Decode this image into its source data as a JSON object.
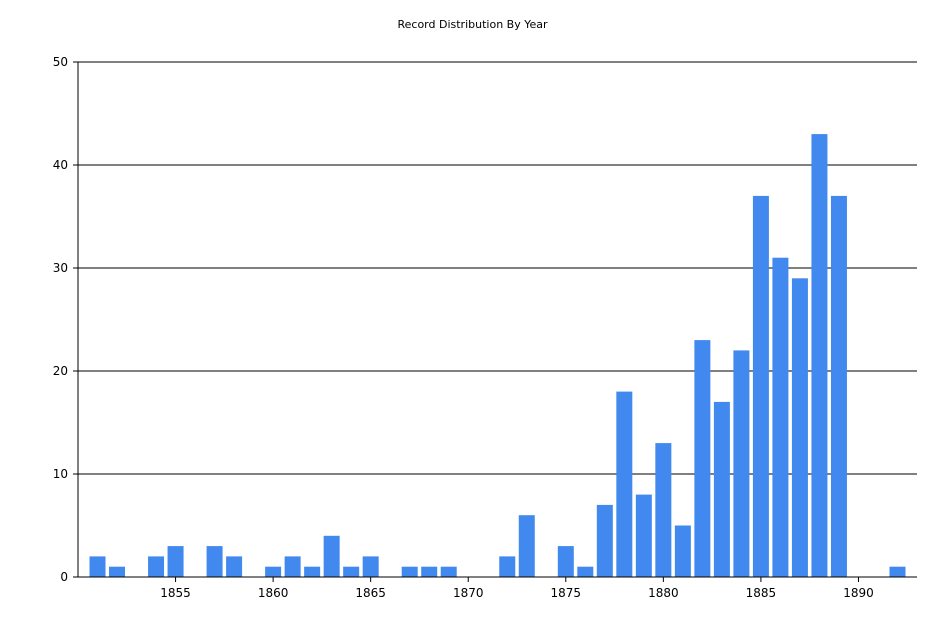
{
  "chart_data": {
    "type": "bar",
    "title": "Record Distribution By Year",
    "xlabel": "",
    "ylabel": "",
    "ylim": [
      0,
      50
    ],
    "xlim": [
      1850,
      1893
    ],
    "yticks": [
      0,
      10,
      20,
      30,
      40,
      50
    ],
    "xticks": [
      1855,
      1860,
      1865,
      1870,
      1875,
      1880,
      1885,
      1890
    ],
    "grid": "horizontal",
    "bar_color": "#4189EE",
    "x": [
      1851,
      1852,
      1854,
      1855,
      1857,
      1858,
      1860,
      1861,
      1862,
      1863,
      1864,
      1865,
      1867,
      1868,
      1869,
      1872,
      1873,
      1875,
      1876,
      1877,
      1878,
      1879,
      1880,
      1881,
      1882,
      1883,
      1884,
      1885,
      1886,
      1887,
      1888,
      1889,
      1892
    ],
    "values": [
      2,
      1,
      2,
      3,
      3,
      2,
      1,
      2,
      1,
      4,
      1,
      2,
      1,
      1,
      1,
      2,
      6,
      3,
      1,
      7,
      18,
      8,
      13,
      5,
      23,
      17,
      22,
      37,
      31,
      29,
      43,
      37,
      1
    ]
  }
}
